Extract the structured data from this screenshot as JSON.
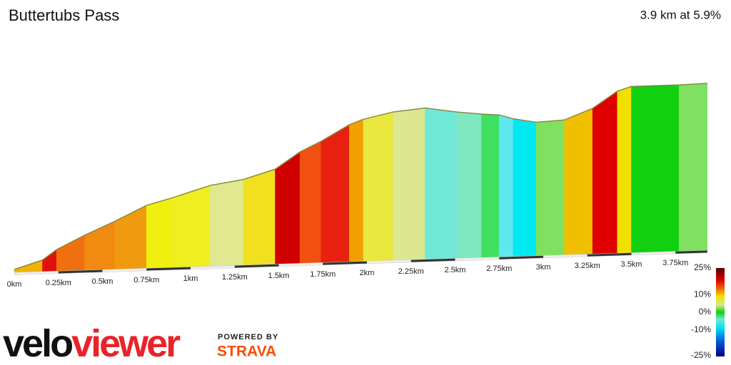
{
  "chart_data": {
    "type": "elevation-profile",
    "title": "Buttertubs Pass",
    "subtitle": "3.9 km at 5.9%",
    "x": [
      0,
      0.16,
      0.24,
      0.4,
      0.57,
      0.75,
      0.89,
      1.11,
      1.3,
      1.48,
      1.62,
      1.74,
      1.9,
      1.98,
      2.15,
      2.33,
      2.51,
      2.65,
      2.75,
      2.83,
      2.96,
      3.12,
      3.28,
      3.42,
      3.5,
      3.77,
      3.93
    ],
    "values": [
      5,
      17,
      31,
      50,
      68,
      89,
      98,
      114,
      121,
      134,
      157,
      171,
      193,
      200,
      209,
      213,
      206,
      202,
      200,
      194,
      188,
      190,
      205,
      228,
      234,
      234,
      235
    ],
    "colors": [
      "#f0b400",
      "#e01010",
      "#f07010",
      "#f08a10",
      "#f09a10",
      "#f0f010",
      "#eeee20",
      "#e0e890",
      "#f0e020",
      "#d00000",
      "#f05010",
      "#e82010",
      "#f0a000",
      "#e8e840",
      "#dce890",
      "#70e8d8",
      "#80e8c0",
      "#40e060",
      "#60e8f0",
      "#00e8f0",
      "#80e060",
      "#f0c000",
      "#e00000",
      "#f0e000",
      "#10d010",
      "#80e060"
    ],
    "xlim": [
      0,
      3.93
    ],
    "ylim": [
      0,
      250
    ],
    "xticks": [
      {
        "value": 0,
        "label": "0km"
      },
      {
        "value": 0.25,
        "label": "0.25km"
      },
      {
        "value": 0.5,
        "label": "0.5km"
      },
      {
        "value": 0.75,
        "label": "0.75km"
      },
      {
        "value": 1,
        "label": "1km"
      },
      {
        "value": 1.25,
        "label": "1.25km"
      },
      {
        "value": 1.5,
        "label": "1.5km"
      },
      {
        "value": 1.75,
        "label": "1.75km"
      },
      {
        "value": 2,
        "label": "2km"
      },
      {
        "value": 2.25,
        "label": "2.25km"
      },
      {
        "value": 2.5,
        "label": "2.5km"
      },
      {
        "value": 2.75,
        "label": "2.75km"
      },
      {
        "value": 3,
        "label": "3km"
      },
      {
        "value": 3.25,
        "label": "3.25km"
      },
      {
        "value": 3.5,
        "label": "3.5km"
      },
      {
        "value": 3.75,
        "label": "3.75km"
      }
    ],
    "colorbar": {
      "lim": [
        -25,
        25
      ],
      "ticks": [
        {
          "value": 25,
          "label": "25%"
        },
        {
          "value": 10,
          "label": "10%"
        },
        {
          "value": 0,
          "label": "0%"
        },
        {
          "value": -10,
          "label": "-10%"
        },
        {
          "value": -25,
          "label": "-25%"
        }
      ],
      "stops": [
        {
          "value": 25,
          "color": "#5a0000"
        },
        {
          "value": 18,
          "color": "#e00000"
        },
        {
          "value": 13,
          "color": "#f07000"
        },
        {
          "value": 9,
          "color": "#f0e000"
        },
        {
          "value": 4,
          "color": "#d8e890"
        },
        {
          "value": 0,
          "color": "#10d010"
        },
        {
          "value": -4,
          "color": "#70e8d8"
        },
        {
          "value": -9,
          "color": "#00e0f0"
        },
        {
          "value": -16,
          "color": "#0060e0"
        },
        {
          "value": -25,
          "color": "#000080"
        }
      ]
    }
  },
  "branding": {
    "logo_left": "velo",
    "logo_right": "viewer",
    "powered_by": "POWERED BY",
    "strava": "STRAVA"
  }
}
